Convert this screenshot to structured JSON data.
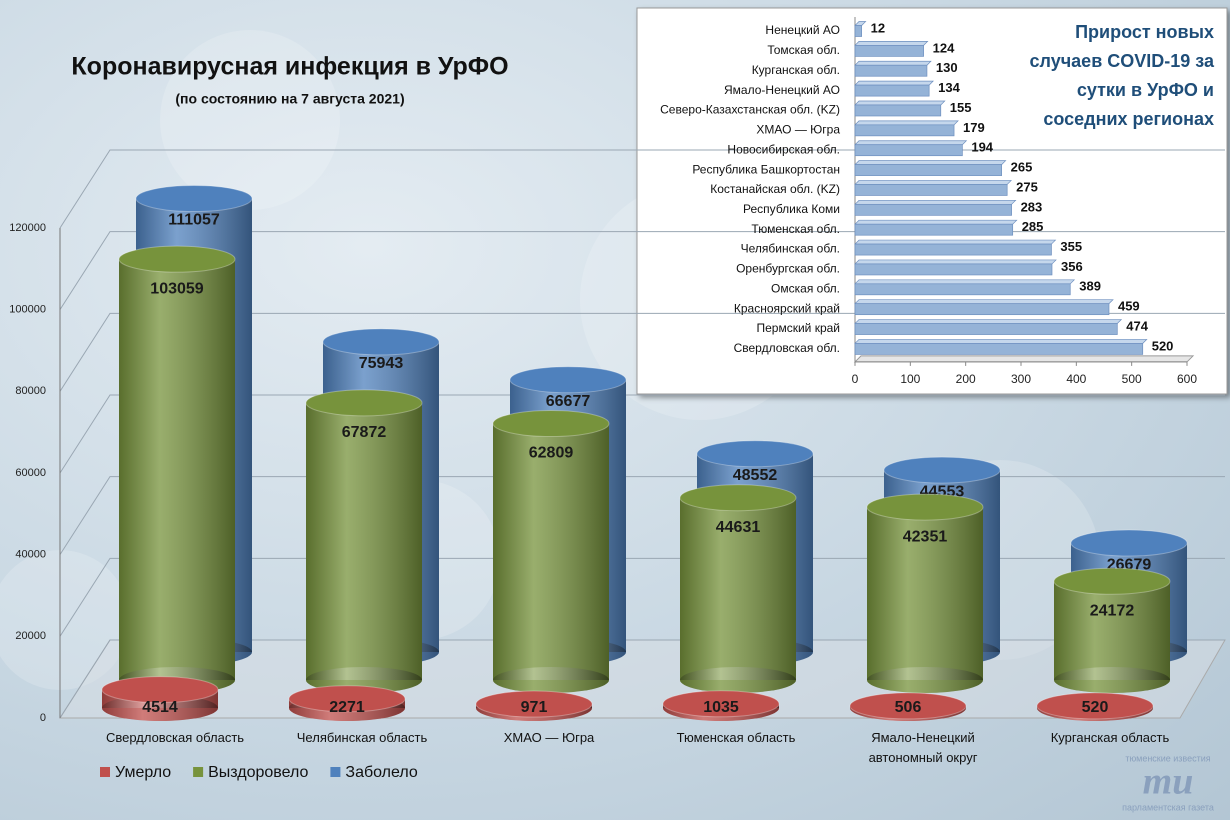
{
  "chart_data": [
    {
      "type": "bar",
      "title": "Коронавирусная инфекция в УрФО",
      "subtitle": "(по состоянию на 7 августа 2021)",
      "categories": [
        "Свердловская область",
        "Челябинская область",
        "ХМАО — Югра",
        "Тюменская область",
        "Ямало-Ненецкий автономный округ",
        "Курганская область"
      ],
      "series": [
        {
          "name": "Умерло",
          "color": "#c0504d",
          "values": [
            4514,
            2271,
            971,
            1035,
            506,
            520
          ]
        },
        {
          "name": "Выздоровело",
          "color": "#77933c",
          "values": [
            103059,
            67872,
            62809,
            44631,
            42351,
            24172
          ]
        },
        {
          "name": "Заболело",
          "color": "#4f81bd",
          "values": [
            111057,
            75943,
            66677,
            48552,
            44553,
            26679
          ]
        }
      ],
      "ylim": [
        0,
        120000
      ],
      "yticks": [
        0,
        20000,
        40000,
        60000,
        80000,
        100000,
        120000
      ],
      "grid": true
    },
    {
      "type": "bar",
      "orientation": "horizontal",
      "title": "Прирост новых случаев COVID-19 за сутки в УрФО и соседних регионах",
      "categories": [
        "Ненецкий АО",
        "Томская обл.",
        "Курганская обл.",
        "Ямало-Ненецкий АО",
        "Северо-Казахстанская обл. (KZ)",
        "ХМАО — Югра",
        "Новосибирская обл.",
        "Республика Башкортостан",
        "Костанайская обл. (KZ)",
        "Республика Коми",
        "Тюменская обл.",
        "Челябинская обл.",
        "Оренбургская обл.",
        "Омская обл.",
        "Красноярский край",
        "Пермский край",
        "Свердловская обл."
      ],
      "values": [
        12,
        124,
        130,
        134,
        155,
        179,
        194,
        265,
        275,
        283,
        285,
        355,
        356,
        389,
        459,
        474,
        520
      ],
      "color": "#95b3d7",
      "xlim": [
        0,
        600
      ],
      "xticks": [
        0,
        100,
        200,
        300,
        400,
        500,
        600
      ]
    }
  ],
  "logo": {
    "top": "тюменские известия",
    "mark": "тu",
    "bottom": "парламентская газета"
  }
}
